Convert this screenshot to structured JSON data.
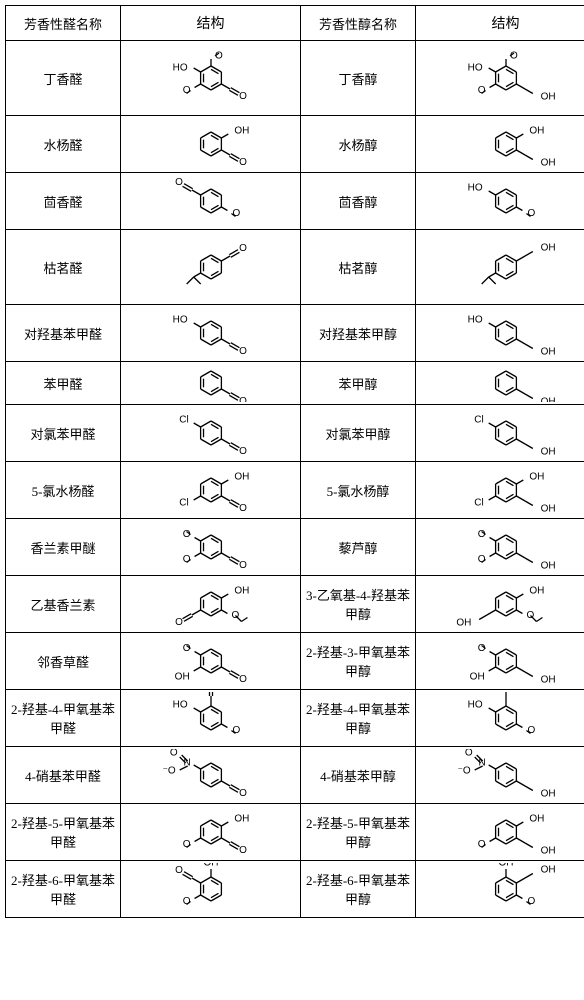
{
  "headers": {
    "col1": "芳香性醛名称",
    "col2": "结构",
    "col3": "芳香性醇名称",
    "col4": "结构"
  },
  "styling": {
    "border_color": "#000000",
    "background_color": "#ffffff",
    "text_color": "#000000",
    "header_fontsize": 14,
    "body_fontsize": 13,
    "bond_stroke_width": 1.3,
    "label_fontsize": 10,
    "font_family": "SimSun"
  },
  "rows": [
    {
      "aldehyde": "丁香醛",
      "alcohol": "丁香醇",
      "height": "tall",
      "ald_struct": "syringaldehyde",
      "alc_struct": "syringyl_alcohol"
    },
    {
      "aldehyde": "水杨醛",
      "alcohol": "水杨醇",
      "height": "med",
      "ald_struct": "salicylaldehyde",
      "alc_struct": "salicyl_alcohol"
    },
    {
      "aldehyde": "茴香醛",
      "alcohol": "茴香醇",
      "height": "med",
      "ald_struct": "anisaldehyde",
      "alc_struct": "anisyl_alcohol"
    },
    {
      "aldehyde": "枯茗醛",
      "alcohol": "枯茗醇",
      "height": "tall",
      "ald_struct": "cuminaldehyde",
      "alc_struct": "cuminyl_alcohol"
    },
    {
      "aldehyde": "对羟基苯甲醛",
      "alcohol": "对羟基苯甲醇",
      "height": "med",
      "ald_struct": "p_hydroxybenzald",
      "alc_struct": "p_hydroxybenzalc"
    },
    {
      "aldehyde": "苯甲醛",
      "alcohol": "苯甲醇",
      "height": "short",
      "ald_struct": "benzaldehyde",
      "alc_struct": "benzyl_alcohol"
    },
    {
      "aldehyde": "对氯苯甲醛",
      "alcohol": "对氯苯甲醇",
      "height": "med",
      "ald_struct": "p_chlorobenzald",
      "alc_struct": "p_chlorobenzalc"
    },
    {
      "aldehyde": "5-氯水杨醛",
      "alcohol": "5-氯水杨醇",
      "height": "med",
      "ald_struct": "5cl_salicylald",
      "alc_struct": "5cl_salicylalc"
    },
    {
      "aldehyde": "香兰素甲醚",
      "alcohol": "藜芦醇",
      "height": "med",
      "ald_struct": "veratraldehyde",
      "alc_struct": "veratryl_alcohol"
    },
    {
      "aldehyde": "乙基香兰素",
      "alcohol": "3-乙氧基-4-羟基苯甲醇",
      "height": "med",
      "ald_struct": "ethylvanillin",
      "alc_struct": "ethylvanillyl_alc"
    },
    {
      "aldehyde": "邻香草醛",
      "alcohol": "2-羟基-3-甲氧基苯甲醇",
      "height": "med",
      "ald_struct": "o_vanillin",
      "alc_struct": "o_vanillyl_alc"
    },
    {
      "aldehyde": "2-羟基-4-甲氧基苯甲醛",
      "alcohol": "2-羟基-4-甲氧基苯甲醇",
      "height": "med",
      "ald_struct": "2oh4ome_ald",
      "alc_struct": "2oh4ome_alc"
    },
    {
      "aldehyde": "4-硝基苯甲醛",
      "alcohol": "4-硝基苯甲醇",
      "height": "med",
      "ald_struct": "4nitro_ald",
      "alc_struct": "4nitro_alc"
    },
    {
      "aldehyde": "2-羟基-5-甲氧基苯甲醛",
      "alcohol": "2-羟基-5-甲氧基苯甲醇",
      "height": "med",
      "ald_struct": "2oh5ome_ald",
      "alc_struct": "2oh5ome_alc"
    },
    {
      "aldehyde": "2-羟基-6-甲氧基苯甲醛",
      "alcohol": "2-羟基-6-甲氧基苯甲醇",
      "height": "med",
      "ald_struct": "2oh6ome_ald",
      "alc_struct": "2oh6ome_alc"
    }
  ]
}
